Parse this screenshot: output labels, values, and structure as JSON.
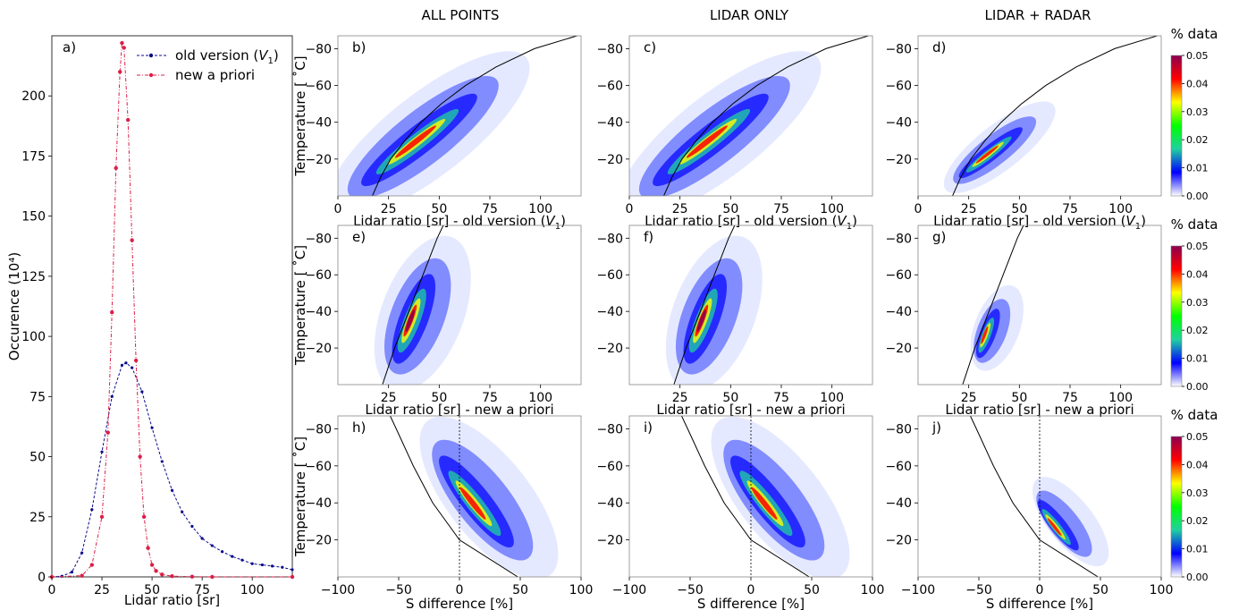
{
  "column_titles": [
    "ALL POINTS",
    "LIDAR ONLY",
    "LIDAR + RADAR"
  ],
  "colorbar": {
    "title": "% data",
    "ticks": [
      "0.00",
      "0.01",
      "0.02",
      "0.03",
      "0.04",
      "0.05"
    ],
    "colors": [
      "#ffffff",
      "#0000ff",
      "#20d0a0",
      "#00ff00",
      "#ffff00",
      "#ff0000",
      "#8b0050"
    ]
  },
  "colors": {
    "old_version": "#0a0a8c",
    "new_apriori": "#dc1e46",
    "axis": "#000000"
  },
  "chart_data": [
    {
      "id": "a",
      "type": "line",
      "panel_label": "a)",
      "xlabel": "Lidar ratio [sr]",
      "ylabel": "Occurence (10⁴)",
      "xlim": [
        0,
        120
      ],
      "ylim": [
        0,
        225
      ],
      "xticks": [
        0,
        25,
        50,
        75,
        100
      ],
      "yticks": [
        0,
        25,
        50,
        75,
        100,
        125,
        150,
        175,
        200
      ],
      "legend_position": "top-right",
      "series": [
        {
          "name": "old version (V₁)",
          "legend_text": "old version (",
          "legend_sub": "1",
          "x": [
            0,
            5,
            10,
            15,
            20,
            25,
            30,
            35,
            37,
            40,
            45,
            50,
            55,
            60,
            65,
            70,
            75,
            80,
            85,
            90,
            95,
            100,
            105,
            110,
            115,
            120
          ],
          "y": [
            0,
            0.3,
            2,
            10,
            28,
            52,
            75,
            88,
            89,
            87,
            77,
            62,
            48,
            36,
            27,
            21,
            16,
            13,
            10.5,
            8.5,
            7,
            5.5,
            5,
            4.5,
            4,
            3
          ]
        },
        {
          "name": "new a priori",
          "legend_text": "new a priori",
          "legend_sub": "",
          "x": [
            0,
            15,
            20,
            25,
            28,
            30,
            32,
            34,
            35,
            36,
            38,
            40,
            42,
            44,
            46,
            48,
            50,
            52,
            55,
            60,
            70,
            80,
            120
          ],
          "y": [
            0,
            0.5,
            5,
            25,
            60,
            110,
            170,
            210,
            222,
            220,
            190,
            140,
            90,
            50,
            25,
            12,
            5,
            2.5,
            1,
            0.3,
            0.1,
            0,
            0
          ]
        }
      ]
    },
    {
      "id": "b",
      "type": "heatmap",
      "panel_label": "b)",
      "xlabel": "Lidar ratio [sr] - old version (V₁)",
      "xlabel_text": "Lidar ratio [sr] - old version (",
      "xlabel_sub": "1",
      "ylabel": "Temperature [°C]",
      "xlim": [
        0,
        120
      ],
      "ylim": [
        0,
        -87
      ],
      "xticks": [
        "0",
        "25",
        "50",
        "75",
        "100"
      ],
      "yticks": [
        "-20",
        "-40",
        "-60",
        "-80"
      ],
      "curve_T": [
        0,
        -10,
        -20,
        -30,
        -40,
        -50,
        -60,
        -70,
        -80,
        -87
      ],
      "curve_S": [
        17,
        21,
        26,
        33,
        41,
        51,
        63,
        78,
        97,
        118
      ]
    },
    {
      "id": "c",
      "type": "heatmap",
      "panel_label": "c)",
      "xlabel": "Lidar ratio [sr] - old version (V₁)",
      "xlabel_text": "Lidar ratio [sr] - old version (",
      "xlabel_sub": "1",
      "ylabel": "Temperature [°C]",
      "xlim": [
        0,
        120
      ],
      "ylim": [
        0,
        -87
      ],
      "xticks": [
        "0",
        "25",
        "50",
        "75",
        "100"
      ],
      "yticks": [
        "-20",
        "-40",
        "-60",
        "-80"
      ],
      "curve_T": [
        0,
        -10,
        -20,
        -30,
        -40,
        -50,
        -60,
        -70,
        -80,
        -87
      ],
      "curve_S": [
        17,
        21,
        26,
        33,
        41,
        51,
        63,
        78,
        97,
        118
      ]
    },
    {
      "id": "d",
      "type": "heatmap",
      "panel_label": "d)",
      "xlabel": "Lidar ratio [sr] - old version (V₁)",
      "xlabel_text": "Lidar ratio [sr] - old version (",
      "xlabel_sub": "1",
      "ylabel": "Temperature [°C]",
      "xlim": [
        0,
        120
      ],
      "ylim": [
        0,
        -87
      ],
      "xticks": [
        "0",
        "25",
        "50",
        "75",
        "100"
      ],
      "yticks": [
        "-20",
        "-40",
        "-60",
        "-80"
      ],
      "curve_T": [
        0,
        -10,
        -20,
        -30,
        -40,
        -50,
        -60,
        -70,
        -80,
        -87
      ],
      "curve_S": [
        17,
        21,
        26,
        33,
        41,
        51,
        63,
        78,
        97,
        118
      ]
    },
    {
      "id": "e",
      "type": "heatmap",
      "panel_label": "e)",
      "xlabel": "Lidar ratio [sr] - new a priori",
      "ylabel": "Temperature [°C]",
      "xlim": [
        0,
        120
      ],
      "ylim": [
        0,
        -87
      ],
      "xticks": [
        "25",
        "50",
        "75",
        "100"
      ],
      "yticks": [
        "-20",
        "-40",
        "-60",
        "-80"
      ],
      "curve_T": [
        0,
        -20,
        -40,
        -60,
        -80,
        -87
      ],
      "curve_S": [
        22,
        28,
        35,
        42,
        49,
        52
      ]
    },
    {
      "id": "f",
      "type": "heatmap",
      "panel_label": "f)",
      "xlabel": "Lidar ratio [sr] - new a priori",
      "ylabel": "Temperature [°C]",
      "xlim": [
        0,
        120
      ],
      "ylim": [
        0,
        -87
      ],
      "xticks": [
        "25",
        "50",
        "75",
        "100"
      ],
      "yticks": [
        "-20",
        "-40",
        "-60",
        "-80"
      ],
      "curve_T": [
        0,
        -20,
        -40,
        -60,
        -80,
        -87
      ],
      "curve_S": [
        22,
        28,
        35,
        42,
        49,
        52
      ]
    },
    {
      "id": "g",
      "type": "heatmap",
      "panel_label": "g)",
      "xlabel": "Lidar ratio [sr] - new a priori",
      "ylabel": "Temperature [°C]",
      "xlim": [
        0,
        120
      ],
      "ylim": [
        0,
        -87
      ],
      "xticks": [
        "25",
        "50",
        "75",
        "100"
      ],
      "yticks": [
        "-20",
        "-40",
        "-60",
        "-80"
      ],
      "curve_T": [
        0,
        -20,
        -40,
        -60,
        -80,
        -87
      ],
      "curve_S": [
        22,
        28,
        35,
        42,
        49,
        52
      ]
    },
    {
      "id": "h",
      "type": "heatmap",
      "panel_label": "h)",
      "xlabel": "S difference [%]",
      "ylabel": "Temperature [°C]",
      "xlim": [
        -100,
        100
      ],
      "ylim": [
        0,
        -87
      ],
      "xticks": [
        "-100",
        "-50",
        "0",
        "50",
        "100"
      ],
      "yticks": [
        "-20",
        "-40",
        "-60",
        "-80"
      ],
      "curve_T": [
        0,
        -20,
        -40,
        -60,
        -80,
        -87
      ],
      "curve_S": [
        48,
        0,
        -22,
        -38,
        -52,
        -57
      ],
      "vline_x": 0
    },
    {
      "id": "i",
      "type": "heatmap",
      "panel_label": "i)",
      "xlabel": "S difference [%]",
      "ylabel": "Temperature [°C]",
      "xlim": [
        -100,
        100
      ],
      "ylim": [
        0,
        -87
      ],
      "xticks": [
        "-100",
        "-50",
        "0",
        "50",
        "100"
      ],
      "yticks": [
        "-20",
        "-40",
        "-60",
        "-80"
      ],
      "curve_T": [
        0,
        -20,
        -40,
        -60,
        -80,
        -87
      ],
      "curve_S": [
        48,
        0,
        -22,
        -38,
        -52,
        -57
      ],
      "vline_x": 0
    },
    {
      "id": "j",
      "type": "heatmap",
      "panel_label": "j)",
      "xlabel": "S difference [%]",
      "ylabel": "Temperature [°C]",
      "xlim": [
        -100,
        100
      ],
      "ylim": [
        0,
        -87
      ],
      "xticks": [
        "-100",
        "-50",
        "0",
        "50",
        "100"
      ],
      "yticks": [
        "-20",
        "-40",
        "-60",
        "-80"
      ],
      "curve_T": [
        0,
        -20,
        -40,
        -60,
        -80,
        -87
      ],
      "curve_S": [
        48,
        0,
        -22,
        -38,
        -52,
        -57
      ],
      "vline_x": 0
    }
  ]
}
